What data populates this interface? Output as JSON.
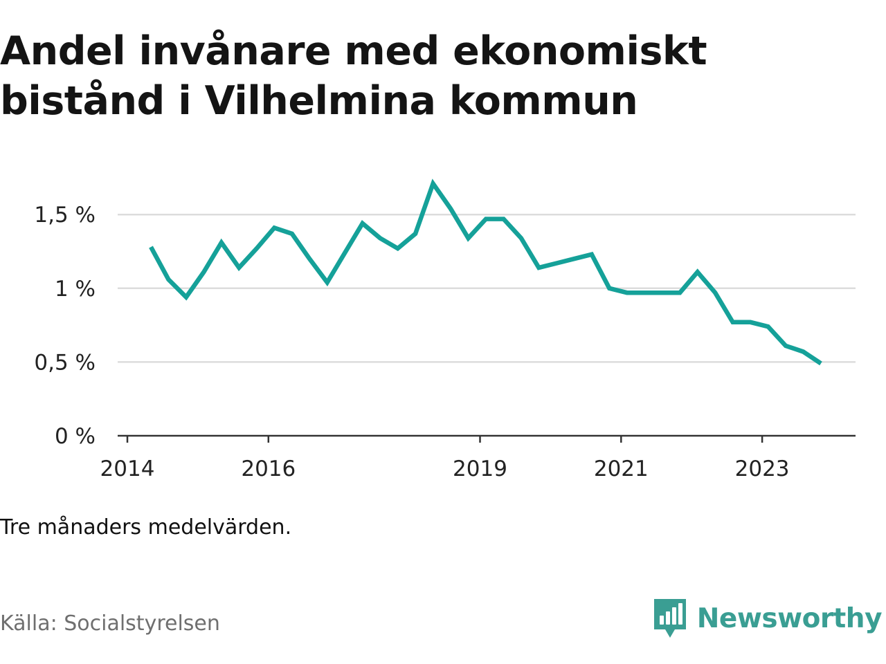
{
  "title": "Andel invånare med ekonomiskt bistånd i Vilhelmina kommun",
  "note": "Tre månaders medelvärden.",
  "source": "Källa: Socialstyrelsen",
  "brand": {
    "name": "Newsworthy",
    "icon": "newsworthy-logo-icon",
    "color": "#3a9e93"
  },
  "colors": {
    "line": "#15a199",
    "grid": "#dcdcdc",
    "axis": "#333333"
  },
  "chart_data": {
    "type": "line",
    "title": "Andel invånare med ekonomiskt bistånd i Vilhelmina kommun",
    "xlabel": "",
    "ylabel": "",
    "x_ticks": [
      "2014",
      "2016",
      "2019",
      "2021",
      "2023"
    ],
    "y_ticks": [
      {
        "value": 0,
        "label": "0 %"
      },
      {
        "value": 0.5,
        "label": "0,5 %"
      },
      {
        "value": 1,
        "label": "1 %"
      },
      {
        "value": 1.5,
        "label": "1,5 %"
      }
    ],
    "ylim": [
      0,
      1.75
    ],
    "grid": true,
    "series": [
      {
        "x": [
          "2014-05",
          "2014-08",
          "2014-11",
          "2015-02",
          "2015-05",
          "2015-08",
          "2015-11",
          "2016-02",
          "2016-05",
          "2016-08",
          "2016-11",
          "2017-02",
          "2017-05",
          "2017-08",
          "2017-11",
          "2018-02",
          "2018-05",
          "2018-08",
          "2018-11",
          "2019-02",
          "2019-05",
          "2019-08",
          "2019-11",
          "2020-02",
          "2020-05",
          "2020-08",
          "2020-11",
          "2021-02",
          "2021-05",
          "2021-08",
          "2021-11",
          "2022-02",
          "2022-05",
          "2022-08",
          "2022-11",
          "2023-02",
          "2023-05",
          "2023-08",
          "2023-11"
        ],
        "values": [
          1.28,
          1.06,
          0.94,
          1.11,
          1.31,
          1.14,
          1.27,
          1.41,
          1.37,
          1.2,
          1.04,
          1.24,
          1.44,
          1.34,
          1.27,
          1.37,
          1.71,
          1.54,
          1.34,
          1.47,
          1.47,
          1.34,
          1.14,
          1.17,
          1.2,
          1.23,
          1.0,
          0.97,
          0.97,
          0.97,
          0.97,
          1.11,
          0.97,
          0.77,
          0.77,
          0.74,
          0.61,
          0.57,
          0.49
        ]
      }
    ]
  }
}
